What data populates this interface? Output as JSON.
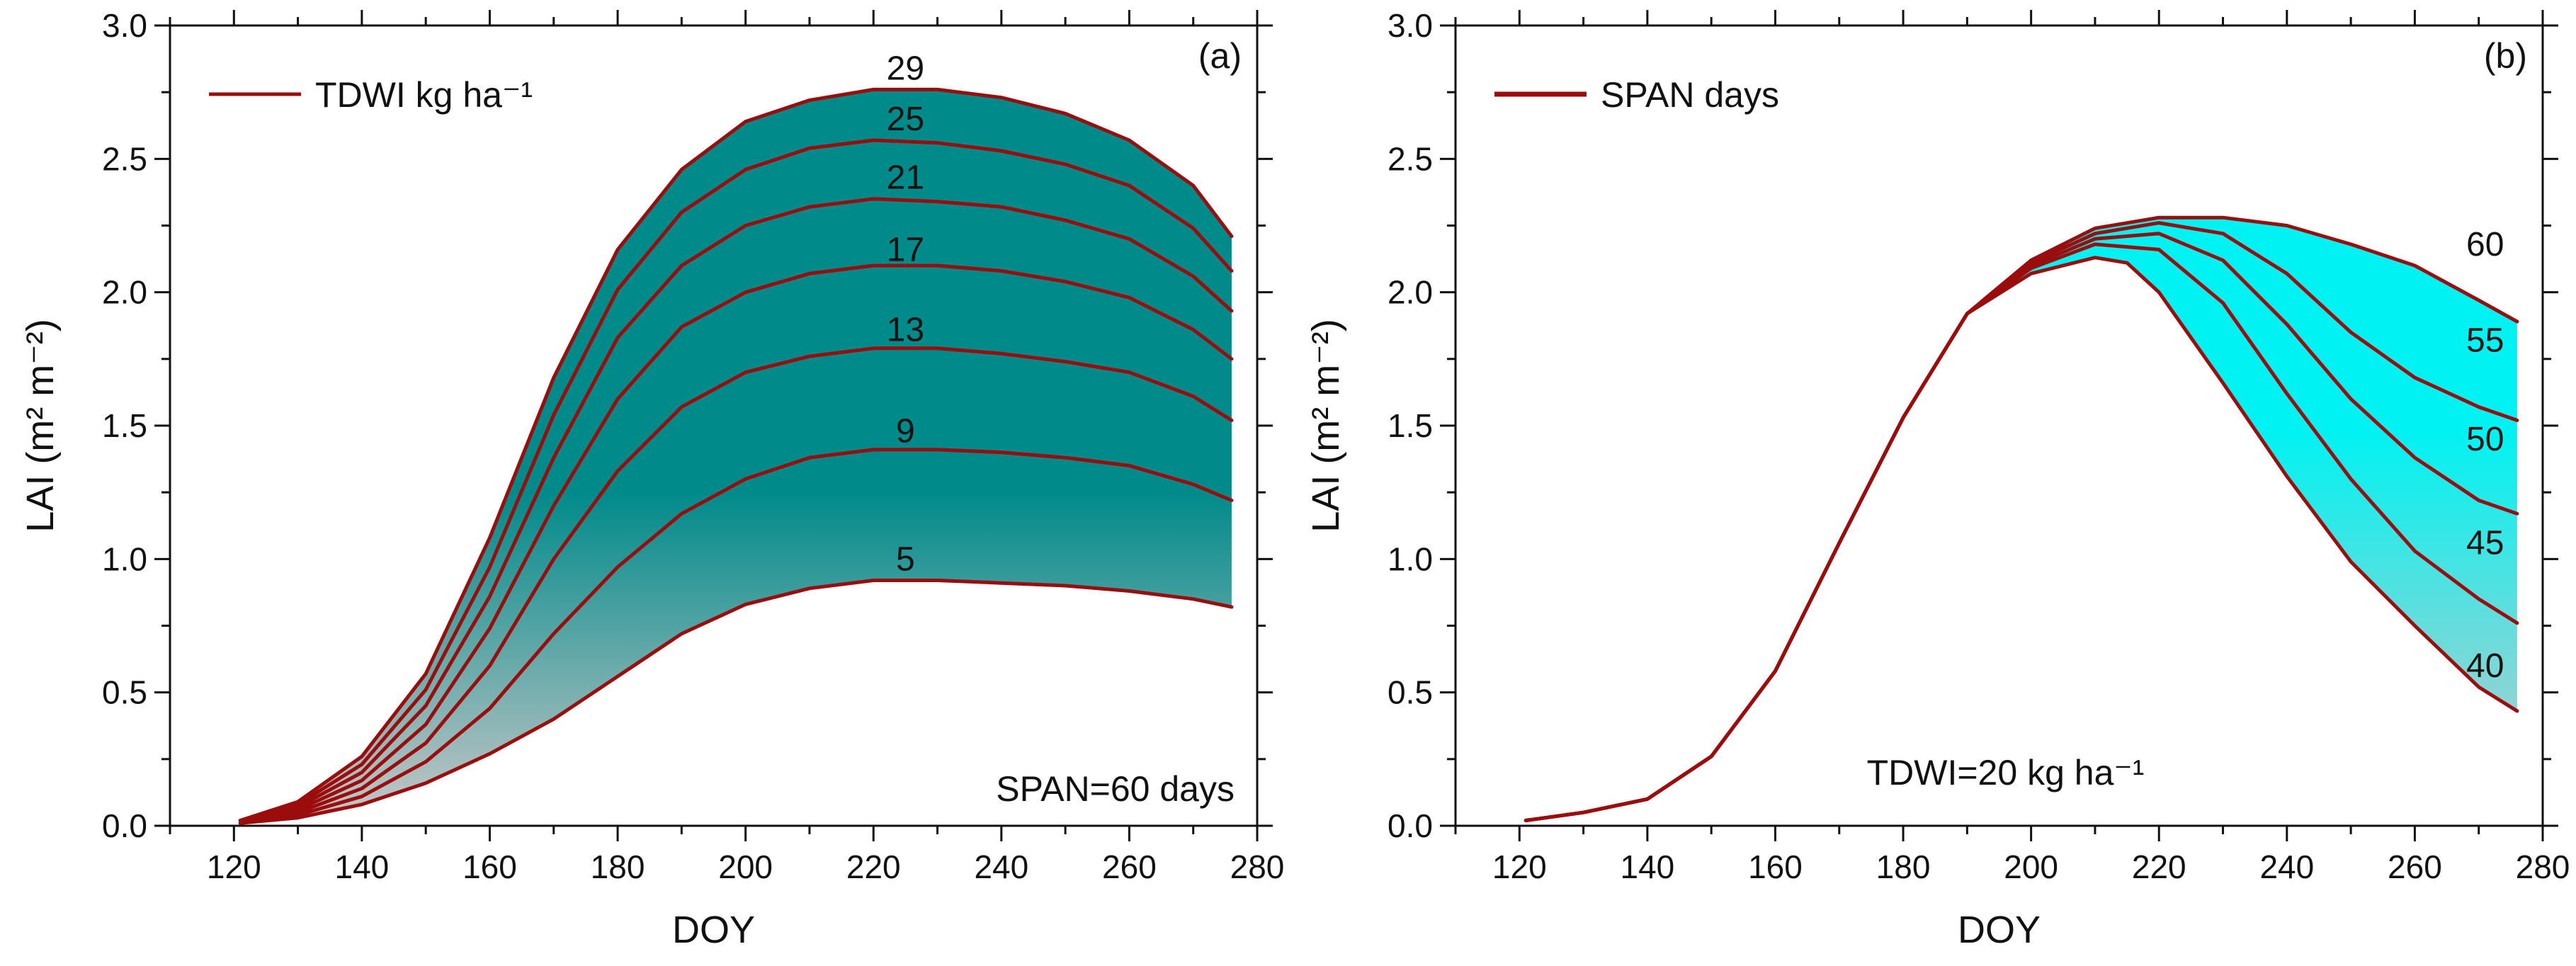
{
  "colors": {
    "line": "#9b0d0d",
    "fill_a_top": "#018a8a",
    "fill_a_bottom": "#c8c8c8",
    "fill_b_top": "#00f2f2",
    "fill_b_bottom": "#c8c8c8"
  },
  "chart_data": [
    {
      "type": "line",
      "panel_label": "(a)",
      "xlabel": "DOY",
      "ylabel": "LAI (m² m⁻²)",
      "xlim": [
        110,
        280
      ],
      "ylim": [
        0.0,
        3.0
      ],
      "x_ticks": [
        120,
        140,
        160,
        180,
        200,
        220,
        240,
        260,
        280
      ],
      "y_ticks": [
        "0.0",
        "0.5",
        "1.0",
        "1.5",
        "2.0",
        "2.5",
        "3.0"
      ],
      "legend": {
        "label": "TDWI kg ha⁻¹",
        "position": "top-left"
      },
      "annotation": "SPAN=60 days",
      "fill": "between-lowest-and-highest-series",
      "series": [
        {
          "name": "5",
          "label_at": [
            225,
            1.0
          ],
          "x": [
            121,
            130,
            140,
            150,
            160,
            170,
            180,
            190,
            200,
            210,
            220,
            230,
            240,
            250,
            260,
            270,
            276
          ],
          "y": [
            0.01,
            0.03,
            0.08,
            0.16,
            0.27,
            0.4,
            0.56,
            0.72,
            0.83,
            0.89,
            0.92,
            0.92,
            0.91,
            0.9,
            0.88,
            0.85,
            0.82
          ]
        },
        {
          "name": "9",
          "label_at": [
            225,
            1.48
          ],
          "x": [
            121,
            130,
            140,
            150,
            160,
            170,
            180,
            190,
            200,
            210,
            220,
            230,
            240,
            250,
            260,
            270,
            276
          ],
          "y": [
            0.01,
            0.04,
            0.11,
            0.24,
            0.44,
            0.72,
            0.97,
            1.17,
            1.3,
            1.38,
            1.41,
            1.41,
            1.4,
            1.38,
            1.35,
            1.28,
            1.22
          ]
        },
        {
          "name": "13",
          "label_at": [
            225,
            1.86
          ],
          "x": [
            121,
            130,
            140,
            150,
            160,
            170,
            180,
            190,
            200,
            210,
            220,
            230,
            240,
            250,
            260,
            270,
            276
          ],
          "y": [
            0.01,
            0.05,
            0.14,
            0.31,
            0.6,
            1.0,
            1.33,
            1.57,
            1.7,
            1.76,
            1.79,
            1.79,
            1.77,
            1.74,
            1.7,
            1.61,
            1.52
          ]
        },
        {
          "name": "17",
          "label_at": [
            225,
            2.16
          ],
          "x": [
            121,
            130,
            140,
            150,
            160,
            170,
            180,
            190,
            200,
            210,
            220,
            230,
            240,
            250,
            260,
            270,
            276
          ],
          "y": [
            0.01,
            0.06,
            0.17,
            0.38,
            0.74,
            1.2,
            1.6,
            1.87,
            2.0,
            2.07,
            2.1,
            2.1,
            2.08,
            2.04,
            1.98,
            1.86,
            1.75
          ]
        },
        {
          "name": "21",
          "label_at": [
            225,
            2.43
          ],
          "x": [
            121,
            130,
            140,
            150,
            160,
            170,
            180,
            190,
            200,
            210,
            220,
            230,
            240,
            250,
            260,
            270,
            276
          ],
          "y": [
            0.02,
            0.07,
            0.2,
            0.45,
            0.86,
            1.38,
            1.83,
            2.1,
            2.25,
            2.32,
            2.35,
            2.34,
            2.32,
            2.27,
            2.2,
            2.06,
            1.93
          ]
        },
        {
          "name": "25",
          "label_at": [
            225,
            2.65
          ],
          "x": [
            121,
            130,
            140,
            150,
            160,
            170,
            180,
            190,
            200,
            210,
            220,
            230,
            240,
            250,
            260,
            270,
            276
          ],
          "y": [
            0.02,
            0.08,
            0.23,
            0.51,
            0.97,
            1.54,
            2.01,
            2.3,
            2.46,
            2.54,
            2.57,
            2.56,
            2.53,
            2.48,
            2.4,
            2.24,
            2.08
          ]
        },
        {
          "name": "29",
          "label_at": [
            225,
            2.84
          ],
          "x": [
            121,
            130,
            140,
            150,
            160,
            170,
            180,
            190,
            200,
            210,
            220,
            230,
            240,
            250,
            260,
            270,
            276
          ],
          "y": [
            0.02,
            0.09,
            0.26,
            0.57,
            1.08,
            1.68,
            2.16,
            2.46,
            2.64,
            2.72,
            2.76,
            2.76,
            2.73,
            2.67,
            2.57,
            2.4,
            2.21
          ]
        }
      ]
    },
    {
      "type": "line",
      "panel_label": "(b)",
      "xlabel": "DOY",
      "ylabel": "LAI (m² m⁻²)",
      "xlim": [
        110,
        280
      ],
      "ylim": [
        0.0,
        3.0
      ],
      "x_ticks": [
        120,
        140,
        160,
        180,
        200,
        220,
        240,
        260,
        280
      ],
      "y_ticks": [
        "0.0",
        "0.5",
        "1.0",
        "1.5",
        "2.0",
        "2.5",
        "3.0"
      ],
      "legend": {
        "label": "SPAN days",
        "position": "top-left"
      },
      "annotation": "TDWI=20 kg ha⁻¹",
      "fill": "between-lowest-and-highest-series",
      "series": [
        {
          "name": "40",
          "label_at": [
            271,
            0.6
          ],
          "x": [
            121,
            130,
            140,
            150,
            160,
            170,
            180,
            190,
            200,
            210,
            215,
            220,
            230,
            240,
            250,
            260,
            270,
            276
          ],
          "y": [
            0.02,
            0.05,
            0.1,
            0.26,
            0.58,
            1.06,
            1.53,
            1.92,
            2.07,
            2.13,
            2.11,
            2.0,
            1.66,
            1.31,
            0.99,
            0.75,
            0.52,
            0.43
          ]
        },
        {
          "name": "45",
          "label_at": [
            271,
            1.06
          ],
          "x": [
            121,
            130,
            140,
            150,
            160,
            170,
            180,
            190,
            200,
            210,
            220,
            230,
            240,
            250,
            260,
            270,
            276
          ],
          "y": [
            0.02,
            0.05,
            0.1,
            0.26,
            0.58,
            1.06,
            1.53,
            1.92,
            2.09,
            2.18,
            2.16,
            1.96,
            1.62,
            1.3,
            1.03,
            0.85,
            0.76
          ]
        },
        {
          "name": "50",
          "label_at": [
            271,
            1.45
          ],
          "x": [
            121,
            130,
            140,
            150,
            160,
            170,
            180,
            190,
            200,
            210,
            220,
            230,
            240,
            250,
            260,
            270,
            276
          ],
          "y": [
            0.02,
            0.05,
            0.1,
            0.26,
            0.58,
            1.06,
            1.53,
            1.92,
            2.1,
            2.2,
            2.22,
            2.12,
            1.88,
            1.6,
            1.38,
            1.22,
            1.17
          ]
        },
        {
          "name": "55",
          "label_at": [
            271,
            1.82
          ],
          "x": [
            121,
            130,
            140,
            150,
            160,
            170,
            180,
            190,
            200,
            210,
            220,
            230,
            240,
            250,
            260,
            270,
            276
          ],
          "y": [
            0.02,
            0.05,
            0.1,
            0.26,
            0.58,
            1.06,
            1.53,
            1.92,
            2.11,
            2.22,
            2.26,
            2.22,
            2.07,
            1.85,
            1.68,
            1.57,
            1.52
          ]
        },
        {
          "name": "60",
          "label_at": [
            271,
            2.18
          ],
          "x": [
            121,
            130,
            140,
            150,
            160,
            170,
            180,
            190,
            200,
            210,
            220,
            230,
            240,
            250,
            260,
            270,
            276
          ],
          "y": [
            0.02,
            0.05,
            0.1,
            0.26,
            0.58,
            1.06,
            1.53,
            1.92,
            2.12,
            2.24,
            2.28,
            2.28,
            2.25,
            2.18,
            2.1,
            1.97,
            1.89
          ]
        }
      ]
    }
  ]
}
